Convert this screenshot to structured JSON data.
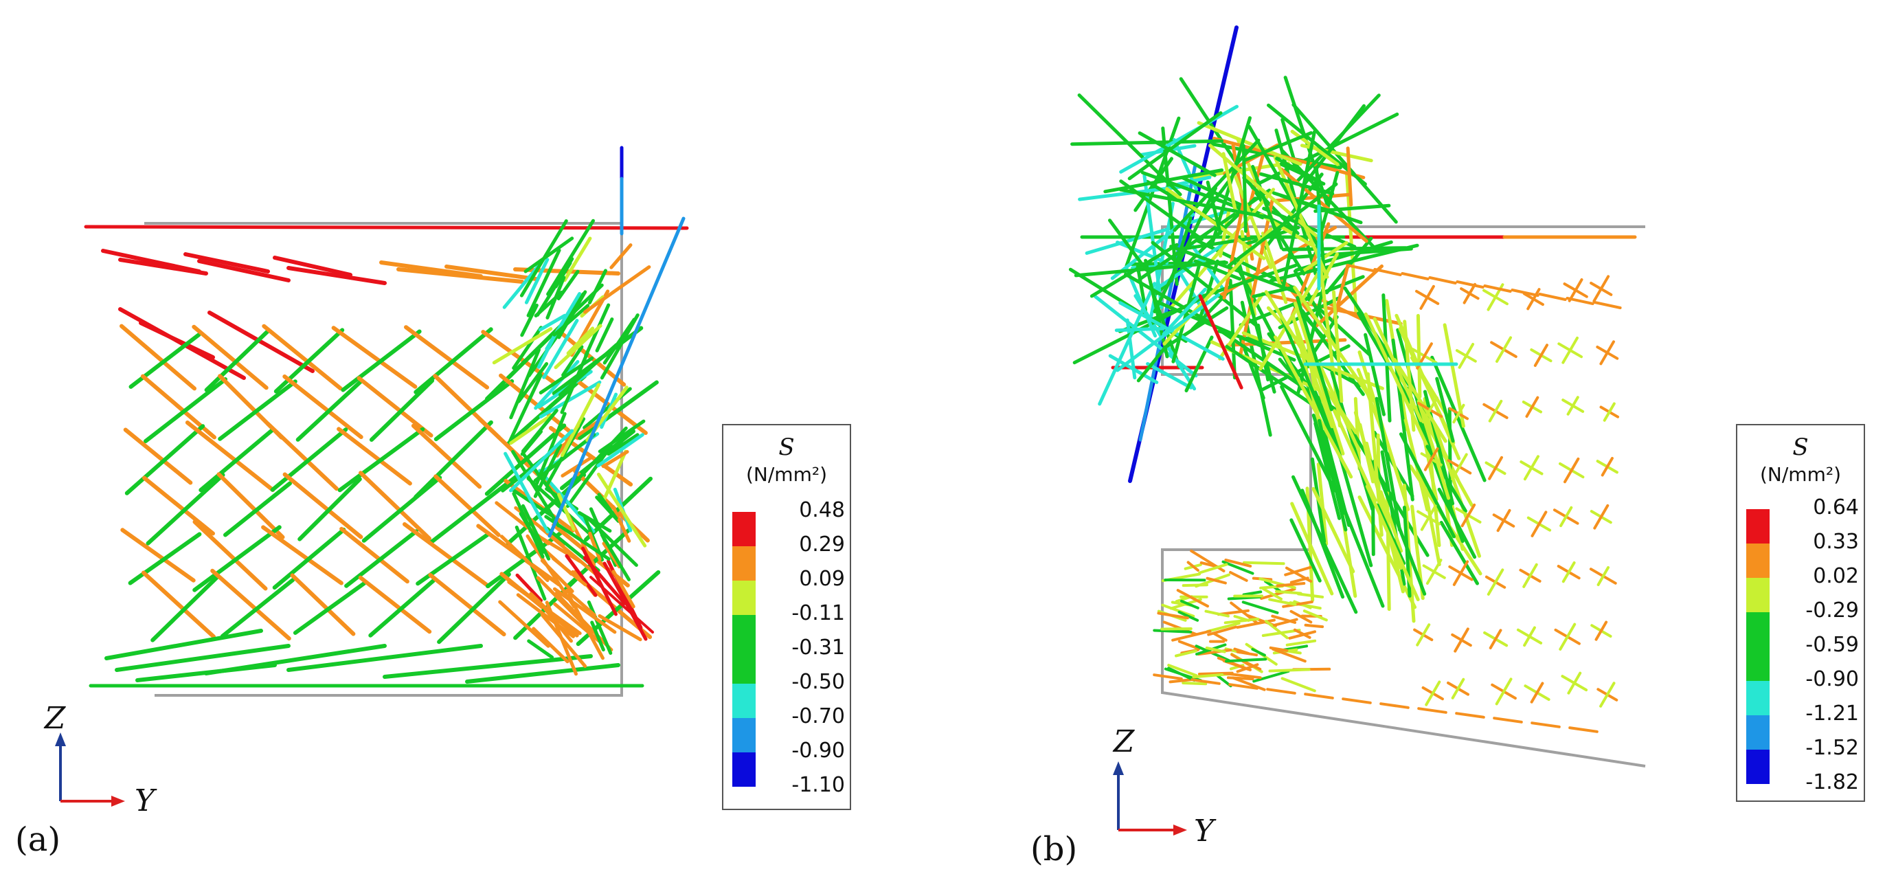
{
  "panels": [
    {
      "id": "a",
      "label": "(a)",
      "legend": {
        "symbol": "S",
        "unit": "(N/mm²)",
        "values": [
          "0.48",
          "0.29",
          "0.09",
          "-0.11",
          "-0.31",
          "-0.50",
          "-0.70",
          "-0.90",
          "-1.10"
        ]
      },
      "axes": {
        "vertical": "Z",
        "horizontal": "Y"
      }
    },
    {
      "id": "b",
      "label": "(b)",
      "legend": {
        "symbol": "S",
        "unit": "(N/mm²)",
        "values": [
          "0.64",
          "0.33",
          "0.02",
          "-0.29",
          "-0.59",
          "-0.90",
          "-1.21",
          "-1.52",
          "-1.82"
        ]
      },
      "axes": {
        "vertical": "Z",
        "horizontal": "Y"
      }
    }
  ],
  "colors": {
    "band_colors": [
      "#e8121a",
      "#f5901e",
      "#c8f032",
      "#14c828",
      "#1ad278",
      "#28e6d2",
      "#1e96e6",
      "#1432e6",
      "#0a0adc"
    ],
    "outline": "#a0a0a0",
    "axis_z": "#1e3c96",
    "axis_y": "#dc1e1e"
  }
}
